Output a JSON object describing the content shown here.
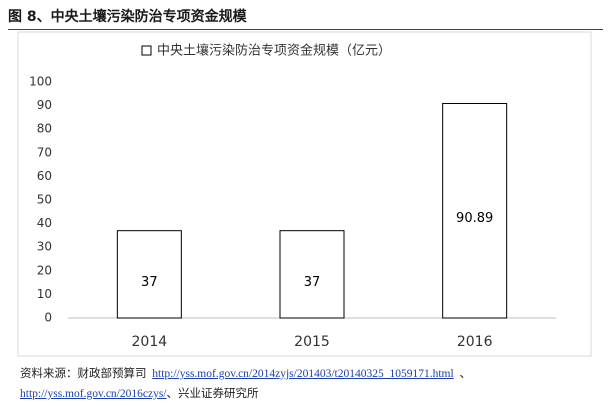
{
  "header": {
    "title": "图 8、中央土壤污染防治专项资金规模"
  },
  "chart_data": {
    "type": "bar",
    "categories": [
      "2014",
      "2015",
      "2016"
    ],
    "series": [
      {
        "name": "中央土壤污染防治专项资金规模（亿元）",
        "color": "#ffffff",
        "edgecolor": "#000000",
        "values": [
          37,
          37,
          90.89
        ]
      }
    ],
    "ylim": [
      0,
      100
    ],
    "yticks": [
      0,
      10,
      20,
      30,
      40,
      50,
      60,
      70,
      80,
      90,
      100
    ],
    "grid": false,
    "legend": "top"
  },
  "source": {
    "prefix": "资料来源：财政部预算司",
    "link1": "http://yss.mof.gov.cn/2014zyjs/201403/t20140325_1059171.html",
    "sep1": "、",
    "link2": "http://yss.mof.gov.cn/2016czys/",
    "suffix": "、兴业证券研究所"
  }
}
